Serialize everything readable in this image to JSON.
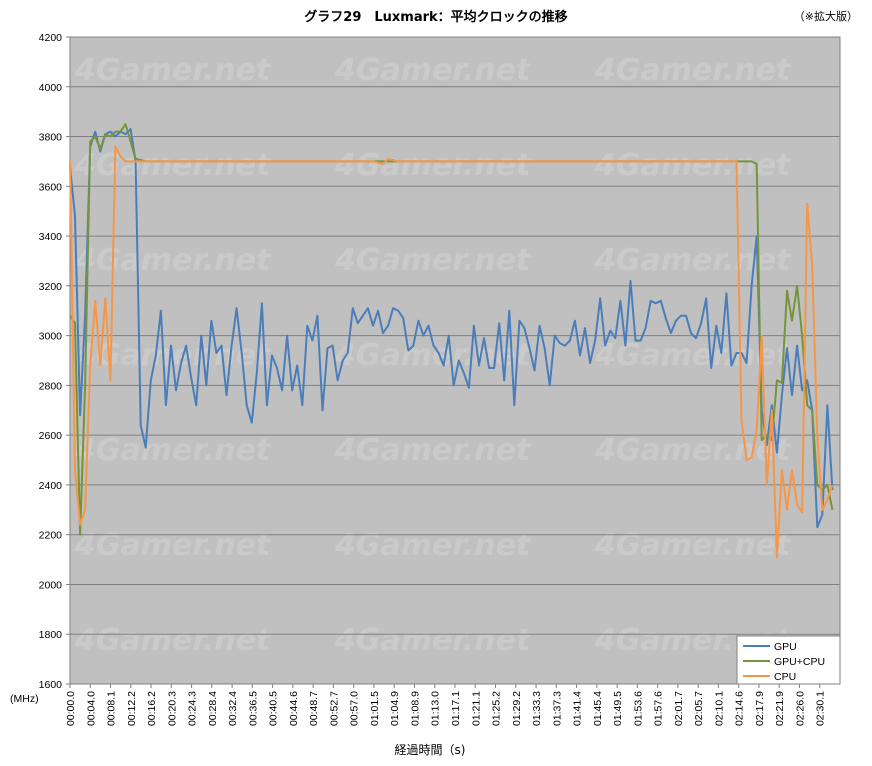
{
  "chart_data": {
    "type": "line",
    "title": "グラフ29　Luxmark：平均クロックの推移",
    "note": "（※拡大版）",
    "ylabel_unit": "(MHz)",
    "xlabel": "経過時間（s)",
    "ylim": [
      1600,
      4200
    ],
    "ytick_step": 200,
    "grid": true,
    "legend_position": "bottom-right",
    "watermark": "4Gamer.net",
    "x_ticks": [
      "00:00.0",
      "00:04.0",
      "00:08.1",
      "00:12.2",
      "00:16.2",
      "00:20.3",
      "00:24.3",
      "00:28.4",
      "00:32.4",
      "00:36.5",
      "00:40.5",
      "00:44.6",
      "00:48.7",
      "00:52.7",
      "00:57.0",
      "01:01.5",
      "01:04.9",
      "01:08.9",
      "01:13.0",
      "01:17.1",
      "01:21.1",
      "01:25.2",
      "01:29.2",
      "01:33.3",
      "01:37.3",
      "01:41.4",
      "01:45.4",
      "01:49.5",
      "01:53.6",
      "01:57.6",
      "02:01.7",
      "02:05.7",
      "02:10.1",
      "02:14.6",
      "02:17.9",
      "02:21.9",
      "02:26.0",
      "02:30.1"
    ],
    "x_range": [
      0,
      152.5
    ],
    "series": [
      {
        "name": "GPU",
        "color": "#4a7ebb",
        "points": [
          [
            0,
            3680
          ],
          [
            1,
            3480
          ],
          [
            2,
            2680
          ],
          [
            3,
            3080
          ],
          [
            4,
            3760
          ],
          [
            5,
            3820
          ],
          [
            6,
            3740
          ],
          [
            7,
            3810
          ],
          [
            8,
            3820
          ],
          [
            9,
            3800
          ],
          [
            10,
            3820
          ],
          [
            11,
            3810
          ],
          [
            12,
            3830
          ],
          [
            13,
            3700
          ],
          [
            14,
            2640
          ],
          [
            15,
            2550
          ],
          [
            16,
            2820
          ],
          [
            17,
            2920
          ],
          [
            18,
            3100
          ],
          [
            19,
            2720
          ],
          [
            20,
            2960
          ],
          [
            21,
            2780
          ],
          [
            22,
            2890
          ],
          [
            23,
            2960
          ],
          [
            24,
            2830
          ],
          [
            25,
            2720
          ],
          [
            26,
            3000
          ],
          [
            27,
            2800
          ],
          [
            28,
            3060
          ],
          [
            29,
            2930
          ],
          [
            30,
            2960
          ],
          [
            31,
            2760
          ],
          [
            32,
            2960
          ],
          [
            33,
            3110
          ],
          [
            34,
            2930
          ],
          [
            35,
            2720
          ],
          [
            36,
            2650
          ],
          [
            37,
            2850
          ],
          [
            38,
            3130
          ],
          [
            39,
            2720
          ],
          [
            40,
            2920
          ],
          [
            41,
            2870
          ],
          [
            42,
            2780
          ],
          [
            43,
            3000
          ],
          [
            44,
            2780
          ],
          [
            45,
            2880
          ],
          [
            46,
            2720
          ],
          [
            47,
            3040
          ],
          [
            48,
            2980
          ],
          [
            49,
            3080
          ],
          [
            50,
            2700
          ],
          [
            51,
            2950
          ],
          [
            52,
            2960
          ],
          [
            53,
            2820
          ],
          [
            54,
            2900
          ],
          [
            55,
            2930
          ],
          [
            56,
            3110
          ],
          [
            57,
            3050
          ],
          [
            58,
            3080
          ],
          [
            59,
            3110
          ],
          [
            60,
            3040
          ],
          [
            61,
            3100
          ],
          [
            62,
            3010
          ],
          [
            63,
            3040
          ],
          [
            64,
            3110
          ],
          [
            65,
            3100
          ],
          [
            66,
            3070
          ],
          [
            67,
            2940
          ],
          [
            68,
            2960
          ],
          [
            69,
            3060
          ],
          [
            70,
            3000
          ],
          [
            71,
            3040
          ],
          [
            72,
            2960
          ],
          [
            73,
            2930
          ],
          [
            74,
            2880
          ],
          [
            75,
            3000
          ],
          [
            76,
            2800
          ],
          [
            77,
            2900
          ],
          [
            78,
            2850
          ],
          [
            79,
            2790
          ],
          [
            80,
            3040
          ],
          [
            81,
            2880
          ],
          [
            82,
            2990
          ],
          [
            83,
            2870
          ],
          [
            84,
            2870
          ],
          [
            85,
            3050
          ],
          [
            86,
            2820
          ],
          [
            87,
            3100
          ],
          [
            88,
            2720
          ],
          [
            89,
            3060
          ],
          [
            90,
            3030
          ],
          [
            91,
            2950
          ],
          [
            92,
            2860
          ],
          [
            93,
            3040
          ],
          [
            94,
            2950
          ],
          [
            95,
            2800
          ],
          [
            96,
            3000
          ],
          [
            97,
            2970
          ],
          [
            98,
            2960
          ],
          [
            99,
            2980
          ],
          [
            100,
            3060
          ],
          [
            101,
            2920
          ],
          [
            102,
            3030
          ],
          [
            103,
            2890
          ],
          [
            104,
            2980
          ],
          [
            105,
            3150
          ],
          [
            106,
            2960
          ],
          [
            107,
            3020
          ],
          [
            108,
            2990
          ],
          [
            109,
            3140
          ],
          [
            110,
            2960
          ],
          [
            111,
            3220
          ],
          [
            112,
            2980
          ],
          [
            113,
            2980
          ],
          [
            114,
            3030
          ],
          [
            115,
            3140
          ],
          [
            116,
            3130
          ],
          [
            117,
            3140
          ],
          [
            118,
            3070
          ],
          [
            119,
            3010
          ],
          [
            120,
            3060
          ],
          [
            121,
            3080
          ],
          [
            122,
            3080
          ],
          [
            123,
            3010
          ],
          [
            124,
            2990
          ],
          [
            125,
            3050
          ],
          [
            126,
            3150
          ],
          [
            127,
            2870
          ],
          [
            128,
            3040
          ],
          [
            129,
            2930
          ],
          [
            130,
            3170
          ],
          [
            131,
            2880
          ],
          [
            132,
            2930
          ],
          [
            133,
            2930
          ],
          [
            134,
            2890
          ],
          [
            135,
            3200
          ],
          [
            136,
            3400
          ],
          [
            137,
            2700
          ],
          [
            138,
            2560
          ],
          [
            139,
            2720
          ],
          [
            140,
            2530
          ],
          [
            141,
            2760
          ],
          [
            142,
            2950
          ],
          [
            143,
            2760
          ],
          [
            144,
            2960
          ],
          [
            145,
            2780
          ],
          [
            146,
            2820
          ],
          [
            147,
            2700
          ],
          [
            148,
            2230
          ],
          [
            149,
            2280
          ],
          [
            150,
            2720
          ],
          [
            151,
            2380
          ]
        ]
      },
      {
        "name": "GPU+CPU",
        "color": "#77933c",
        "points": [
          [
            0,
            3080
          ],
          [
            1,
            3050
          ],
          [
            2,
            2200
          ],
          [
            3,
            2800
          ],
          [
            4,
            3780
          ],
          [
            5,
            3800
          ],
          [
            6,
            3750
          ],
          [
            7,
            3810
          ],
          [
            8,
            3800
          ],
          [
            9,
            3820
          ],
          [
            10,
            3820
          ],
          [
            11,
            3850
          ],
          [
            12,
            3780
          ],
          [
            13,
            3710
          ],
          [
            15,
            3700
          ],
          [
            30,
            3700
          ],
          [
            60,
            3700
          ],
          [
            90,
            3700
          ],
          [
            120,
            3700
          ],
          [
            135,
            3700
          ],
          [
            136,
            3690
          ],
          [
            137,
            2580
          ],
          [
            138,
            2600
          ],
          [
            139,
            2580
          ],
          [
            140,
            2820
          ],
          [
            141,
            2810
          ],
          [
            142,
            3180
          ],
          [
            143,
            3060
          ],
          [
            144,
            3200
          ],
          [
            145,
            3000
          ],
          [
            146,
            2720
          ],
          [
            147,
            2700
          ],
          [
            148,
            2400
          ],
          [
            149,
            2380
          ],
          [
            150,
            2400
          ],
          [
            151,
            2300
          ]
        ]
      },
      {
        "name": "CPU",
        "color": "#f79646",
        "points": [
          [
            0,
            3700
          ],
          [
            1,
            2460
          ],
          [
            2,
            2240
          ],
          [
            3,
            2300
          ],
          [
            4,
            2880
          ],
          [
            5,
            3140
          ],
          [
            6,
            2880
          ],
          [
            7,
            3150
          ],
          [
            8,
            2820
          ],
          [
            9,
            3760
          ],
          [
            10,
            3720
          ],
          [
            11,
            3700
          ],
          [
            12,
            3700
          ],
          [
            20,
            3700
          ],
          [
            40,
            3700
          ],
          [
            60,
            3700
          ],
          [
            62,
            3690
          ],
          [
            63,
            3710
          ],
          [
            65,
            3700
          ],
          [
            90,
            3700
          ],
          [
            120,
            3700
          ],
          [
            132,
            3700
          ],
          [
            133,
            2660
          ],
          [
            134,
            2500
          ],
          [
            135,
            2510
          ],
          [
            136,
            2620
          ],
          [
            137,
            3000
          ],
          [
            138,
            2400
          ],
          [
            139,
            2700
          ],
          [
            140,
            2110
          ],
          [
            141,
            2460
          ],
          [
            142,
            2300
          ],
          [
            143,
            2460
          ],
          [
            144,
            2320
          ],
          [
            145,
            2290
          ],
          [
            146,
            3530
          ],
          [
            147,
            3280
          ],
          [
            148,
            2600
          ],
          [
            149,
            2300
          ],
          [
            150,
            2340
          ],
          [
            151,
            2400
          ]
        ]
      }
    ]
  }
}
